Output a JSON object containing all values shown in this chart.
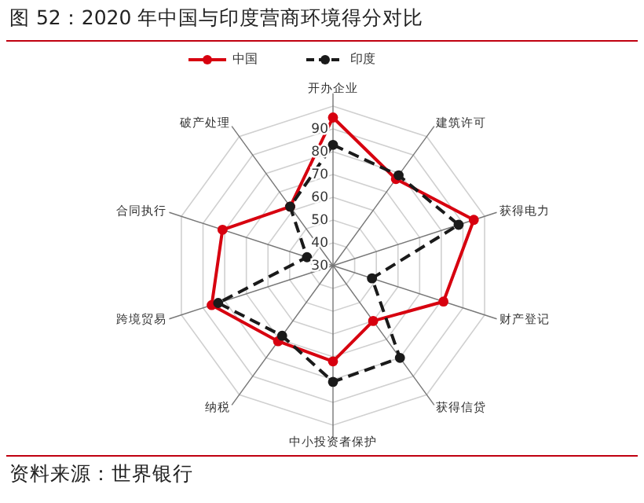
{
  "chart_data": {
    "type": "radar",
    "title": "图 52：2020 年中国与印度营商环境得分对比",
    "categories": [
      "开办企业",
      "建筑许可",
      "获得电力",
      "财产登记",
      "获得信贷",
      "中小投资者保护",
      "纳税",
      "跨境贸易",
      "合同执行",
      "破产处理"
    ],
    "series": [
      {
        "name": "中国",
        "color": "#d7000f",
        "line_style": "solid",
        "values": [
          95,
          77,
          95,
          81,
          60,
          72,
          71,
          86,
          81,
          62
        ]
      },
      {
        "name": "印度",
        "color": "#1a1a1a",
        "line_style": "dashed",
        "values": [
          83,
          79,
          88,
          48,
          80,
          81,
          68,
          83,
          42,
          62
        ]
      }
    ],
    "ylim": [
      30,
      100
    ],
    "yticks": [
      30,
      40,
      50,
      60,
      70,
      80,
      90
    ],
    "marker": "circle",
    "legend": "top",
    "grid": true,
    "annotations": [
      "资料来源：世界银行"
    ]
  }
}
